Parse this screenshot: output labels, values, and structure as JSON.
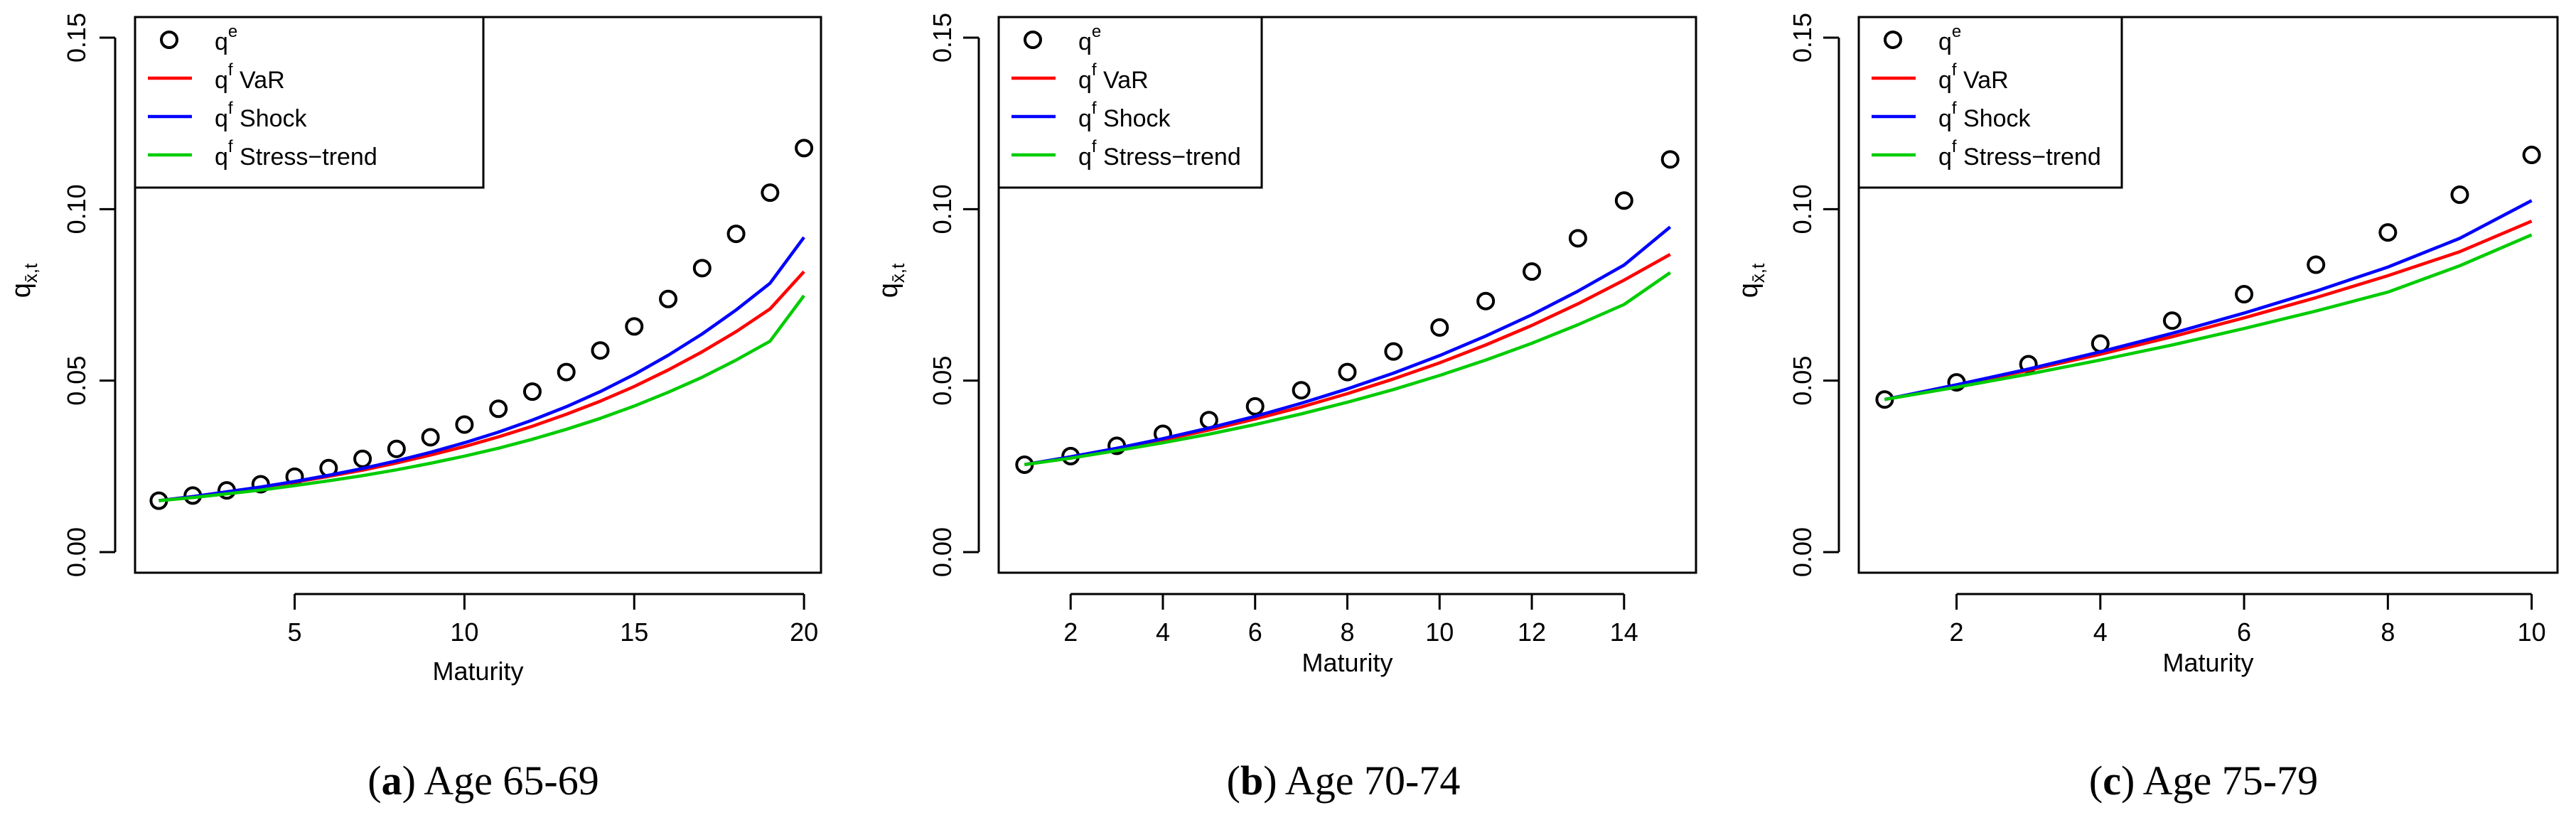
{
  "chart_data": [
    {
      "type": "scatter+line",
      "caption_tag": "a",
      "caption_text": "Age 65-69",
      "xlabel": "Maturity",
      "ylabel": "q",
      "ylabel_sub": "x̄,t",
      "xlim": [
        0.3,
        20.5
      ],
      "ylim": [
        -0.006,
        0.156
      ],
      "xticks": [
        5,
        10,
        15,
        20
      ],
      "xtick_labels": [
        "5",
        "10",
        "15",
        "20"
      ],
      "yticks": [
        0.0,
        0.05,
        0.1,
        0.15
      ],
      "ytick_labels": [
        "0.00",
        "0.05",
        "0.10",
        "0.15"
      ],
      "legend_position": "top-left",
      "legend": [
        {
          "key": "qe",
          "base": "q",
          "sup": "e",
          "suffix": "",
          "marker": "circle",
          "color": "#000000"
        },
        {
          "key": "var",
          "base": "q",
          "sup": "f",
          "suffix": " VaR",
          "marker": "line",
          "color": "#ff0000"
        },
        {
          "key": "shock",
          "base": "q",
          "sup": "f",
          "suffix": " Shock",
          "marker": "line",
          "color": "#0000ff"
        },
        {
          "key": "stress",
          "base": "q",
          "sup": "f",
          "suffix": " Stress−trend",
          "marker": "line",
          "color": "#00cc00"
        }
      ],
      "x": [
        1,
        2,
        3,
        4,
        5,
        6,
        7,
        8,
        9,
        10,
        11,
        12,
        13,
        14,
        15,
        16,
        17,
        18,
        19,
        20
      ],
      "series": [
        {
          "name": "qe",
          "marker": "circle",
          "color": "#000000",
          "values": [
            0.015,
            0.0165,
            0.018,
            0.0198,
            0.022,
            0.0245,
            0.0272,
            0.0301,
            0.0335,
            0.0372,
            0.0418,
            0.0468,
            0.0525,
            0.0588,
            0.0658,
            0.0738,
            0.0828,
            0.0928,
            0.1048,
            0.1178
          ]
        },
        {
          "name": "var",
          "marker": "line",
          "color": "#ff0000",
          "values": [
            0.015,
            0.0162,
            0.0175,
            0.0189,
            0.0204,
            0.0221,
            0.0239,
            0.026,
            0.0283,
            0.0308,
            0.0336,
            0.0367,
            0.0402,
            0.044,
            0.0483,
            0.0531,
            0.0584,
            0.0643,
            0.0709,
            0.0818
          ]
        },
        {
          "name": "shock",
          "marker": "line",
          "color": "#0000ff",
          "values": [
            0.015,
            0.0162,
            0.0176,
            0.019,
            0.0206,
            0.0224,
            0.0244,
            0.0266,
            0.0291,
            0.0319,
            0.035,
            0.0385,
            0.0424,
            0.0468,
            0.0518,
            0.0574,
            0.0636,
            0.0706,
            0.0784,
            0.0918
          ]
        },
        {
          "name": "stress",
          "marker": "line",
          "color": "#00cc00",
          "values": [
            0.015,
            0.0159,
            0.017,
            0.0181,
            0.0194,
            0.0208,
            0.0223,
            0.024,
            0.0259,
            0.028,
            0.0303,
            0.0329,
            0.0358,
            0.039,
            0.0426,
            0.0466,
            0.051,
            0.056,
            0.0615,
            0.0748
          ]
        }
      ]
    },
    {
      "type": "scatter+line",
      "caption_tag": "b",
      "caption_text": "Age 70-74",
      "xlabel": "Maturity",
      "ylabel": "q",
      "ylabel_sub": "x̄,t",
      "xlim": [
        0.44,
        15.56
      ],
      "ylim": [
        -0.006,
        0.156
      ],
      "xticks": [
        2,
        4,
        6,
        8,
        10,
        12,
        14
      ],
      "xtick_labels": [
        "2",
        "4",
        "6",
        "8",
        "10",
        "12",
        "14"
      ],
      "yticks": [
        0.0,
        0.05,
        0.1,
        0.15
      ],
      "ytick_labels": [
        "0.00",
        "0.05",
        "0.10",
        "0.15"
      ],
      "legend_position": "top-left",
      "legend": [
        {
          "key": "qe",
          "base": "q",
          "sup": "e",
          "suffix": "",
          "marker": "circle",
          "color": "#000000"
        },
        {
          "key": "var",
          "base": "q",
          "sup": "f",
          "suffix": " VaR",
          "marker": "line",
          "color": "#ff0000"
        },
        {
          "key": "shock",
          "base": "q",
          "sup": "f",
          "suffix": " Shock",
          "marker": "line",
          "color": "#0000ff"
        },
        {
          "key": "stress",
          "base": "q",
          "sup": "f",
          "suffix": " Stress−trend",
          "marker": "line",
          "color": "#00cc00"
        }
      ],
      "x": [
        1,
        2,
        3,
        4,
        5,
        6,
        7,
        8,
        9,
        10,
        11,
        12,
        13,
        14,
        15
      ],
      "series": [
        {
          "name": "qe",
          "marker": "circle",
          "color": "#000000",
          "values": [
            0.0255,
            0.028,
            0.031,
            0.0345,
            0.0385,
            0.0425,
            0.0472,
            0.0525,
            0.0585,
            0.0655,
            0.0732,
            0.0818,
            0.0915,
            0.1025,
            0.1145
          ]
        },
        {
          "name": "var",
          "marker": "line",
          "color": "#ff0000",
          "values": [
            0.0255,
            0.0277,
            0.0301,
            0.0327,
            0.0356,
            0.0388,
            0.0423,
            0.0462,
            0.0505,
            0.0552,
            0.0604,
            0.0661,
            0.0724,
            0.0793,
            0.0868
          ]
        },
        {
          "name": "shock",
          "marker": "line",
          "color": "#0000ff",
          "values": [
            0.0255,
            0.0278,
            0.0303,
            0.0331,
            0.0362,
            0.0396,
            0.0434,
            0.0476,
            0.0522,
            0.0573,
            0.063,
            0.0692,
            0.0761,
            0.0837,
            0.0948
          ]
        },
        {
          "name": "stress",
          "marker": "line",
          "color": "#00cc00",
          "values": [
            0.0255,
            0.0274,
            0.0296,
            0.0319,
            0.0344,
            0.0372,
            0.0403,
            0.0437,
            0.0474,
            0.0515,
            0.056,
            0.0609,
            0.0663,
            0.0722,
            0.0815
          ]
        }
      ]
    },
    {
      "type": "scatter+line",
      "caption_tag": "c",
      "caption_text": "Age 75-79",
      "xlabel": "Maturity",
      "ylabel": "q",
      "ylabel_sub": "x̄,t",
      "xlim": [
        0.64,
        10.36
      ],
      "ylim": [
        -0.006,
        0.156
      ],
      "xticks": [
        2,
        4,
        6,
        8,
        10
      ],
      "xtick_labels": [
        "2",
        "4",
        "6",
        "8",
        "10"
      ],
      "yticks": [
        0.0,
        0.05,
        0.1,
        0.15
      ],
      "ytick_labels": [
        "0.00",
        "0.05",
        "0.10",
        "0.15"
      ],
      "legend_position": "top-left",
      "legend": [
        {
          "key": "qe",
          "base": "q",
          "sup": "e",
          "suffix": "",
          "marker": "circle",
          "color": "#000000"
        },
        {
          "key": "var",
          "base": "q",
          "sup": "f",
          "suffix": " VaR",
          "marker": "line",
          "color": "#ff0000"
        },
        {
          "key": "shock",
          "base": "q",
          "sup": "f",
          "suffix": " Shock",
          "marker": "line",
          "color": "#0000ff"
        },
        {
          "key": "stress",
          "base": "q",
          "sup": "f",
          "suffix": " Stress−trend",
          "marker": "line",
          "color": "#00cc00"
        }
      ],
      "x": [
        1,
        2,
        3,
        4,
        5,
        6,
        7,
        8,
        9,
        10
      ],
      "series": [
        {
          "name": "qe",
          "marker": "circle",
          "color": "#000000",
          "values": [
            0.0445,
            0.0495,
            0.0548,
            0.0608,
            0.0675,
            0.0752,
            0.0838,
            0.0932,
            0.1042,
            0.1158
          ]
        },
        {
          "name": "var",
          "marker": "line",
          "color": "#ff0000",
          "values": [
            0.0445,
            0.0486,
            0.053,
            0.0577,
            0.0628,
            0.0683,
            0.0742,
            0.0806,
            0.0876,
            0.0965
          ]
        },
        {
          "name": "shock",
          "marker": "line",
          "color": "#0000ff",
          "values": [
            0.0445,
            0.0488,
            0.0534,
            0.0584,
            0.0638,
            0.0697,
            0.0761,
            0.0831,
            0.0915,
            0.1025
          ]
        },
        {
          "name": "stress",
          "marker": "line",
          "color": "#00cc00",
          "values": [
            0.0445,
            0.0481,
            0.0519,
            0.056,
            0.0604,
            0.0652,
            0.0703,
            0.0758,
            0.0835,
            0.0925
          ]
        }
      ]
    }
  ]
}
